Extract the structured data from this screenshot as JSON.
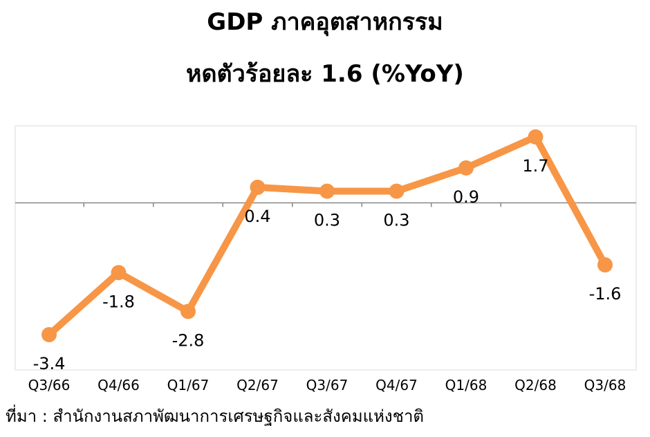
{
  "title_line_1": "GDP ภาคอุตสาหกรรม",
  "title_line_2": "หดตัวร้อยละ 1.6 (%YoY)",
  "source": "ที่มา : สำนักงานสภาพัฒนาการเศรษฐกิจและสังคมแห่งชาติ",
  "colors": {
    "line": "#F79646",
    "axis": "#868686",
    "plot_border": "#D9D9D9"
  },
  "chart_data": {
    "type": "line",
    "categories": [
      "Q3/66",
      "Q4/66",
      "Q1/67",
      "Q2/67",
      "Q3/67",
      "Q4/67",
      "Q1/68",
      "Q2/68",
      "Q3/68"
    ],
    "series": [
      {
        "values": [
          -3.4,
          -1.8,
          -2.8,
          0.4,
          0.3,
          0.3,
          0.9,
          1.7,
          -1.6
        ],
        "labels": [
          "-3.4",
          "-1.8",
          "-2.8",
          "0.4",
          "0.3",
          "0.3",
          "0.9",
          "1.7",
          "-1.6"
        ]
      }
    ],
    "label_placement": [
      "below",
      "below",
      "below",
      "below",
      "below",
      "below",
      "below",
      "below",
      "below"
    ],
    "ylim": [
      -3.4,
      1.7
    ],
    "grid": false,
    "legend": "none",
    "xlabel": "",
    "ylabel": ""
  }
}
